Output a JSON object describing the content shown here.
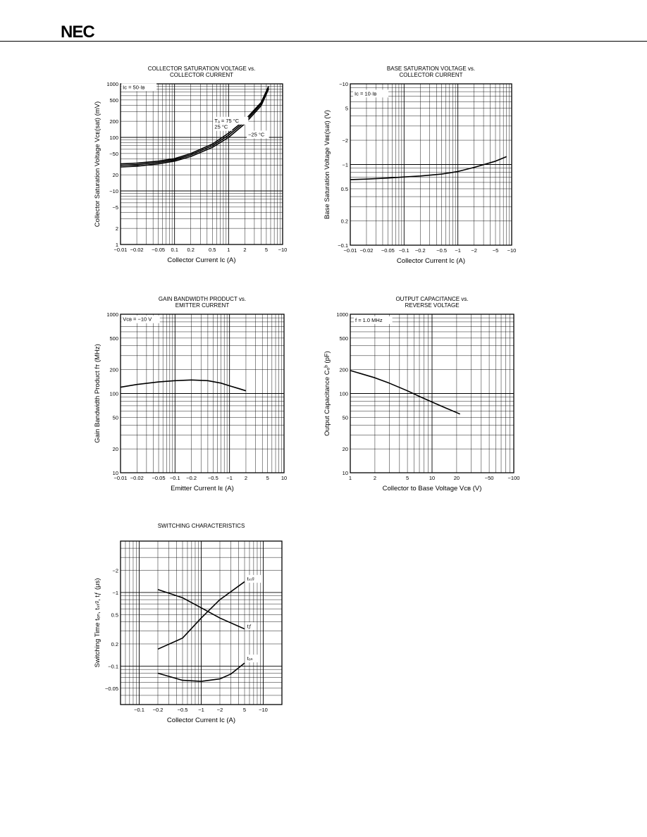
{
  "header": {
    "logo": "NEC"
  },
  "chart_data": [
    {
      "id": "c1",
      "type": "line",
      "title": [
        "COLLECTOR SATURATION VOLTAGE vs.",
        "COLLECTOR CURRENT"
      ],
      "xlabel": "Collector Current  Iᴄ (A)",
      "ylabel": "Collector Saturation Voltage  Vᴄᴇ(sat) (mV)",
      "xscale": "log",
      "yscale": "log",
      "xlim": [
        0.01,
        10
      ],
      "ylim": [
        1,
        1000
      ],
      "xticks": [
        0.01,
        0.02,
        0.05,
        0.1,
        0.2,
        0.5,
        1,
        2,
        5,
        10
      ],
      "xticklabels": [
        "−0.01",
        "−0.02",
        "−0.05",
        "0.1",
        "0.2",
        "0.5",
        "1",
        "2",
        "5",
        "−10"
      ],
      "yticks": [
        1,
        2,
        5,
        10,
        20,
        50,
        100,
        200,
        500,
        1000
      ],
      "yticklabels": [
        "1",
        "2",
        "−5",
        "−10",
        "20",
        "−50",
        "100",
        "200",
        "500",
        "1000"
      ],
      "annotations": [
        {
          "text": "Iᴄ = 50·Iʙ",
          "x": 0.011,
          "y": 800
        },
        {
          "text": "Tₐ = 75 °C",
          "x": 0.55,
          "y": 190
        },
        {
          "text": "25 °C",
          "x": 0.55,
          "y": 145
        },
        {
          "text": "−25 °C",
          "x": 2.3,
          "y": 105
        }
      ],
      "series": [
        {
          "name": "75 °C",
          "x": [
            0.01,
            0.02,
            0.05,
            0.1,
            0.2,
            0.5,
            1,
            2,
            4,
            5.5
          ],
          "y": [
            32,
            33,
            36,
            40,
            50,
            75,
            120,
            210,
            450,
            900
          ]
        },
        {
          "name": "25 °C",
          "x": [
            0.01,
            0.02,
            0.05,
            0.1,
            0.2,
            0.5,
            1,
            2,
            4,
            5.5
          ],
          "y": [
            30,
            31,
            34,
            38,
            47,
            70,
            110,
            195,
            420,
            850
          ]
        },
        {
          "name": "−25 °C",
          "x": [
            0.01,
            0.02,
            0.05,
            0.1,
            0.2,
            0.5,
            1,
            2,
            4,
            5.5
          ],
          "y": [
            28,
            29,
            32,
            36,
            44,
            65,
            100,
            180,
            390,
            800
          ]
        }
      ]
    },
    {
      "id": "c2",
      "type": "line",
      "title": [
        "BASE SATURATION VOLTAGE vs.",
        "COLLECTOR CURRENT"
      ],
      "xlabel": "Collector Current  Iᴄ (A)",
      "ylabel": "Base Saturation Voltage  Vʙᴇ(sat) (V)",
      "xscale": "log",
      "yscale": "log",
      "xlim": [
        0.01,
        10
      ],
      "ylim": [
        0.1,
        10
      ],
      "xticks": [
        0.01,
        0.02,
        0.05,
        0.1,
        0.2,
        0.5,
        1,
        2,
        5,
        10
      ],
      "xticklabels": [
        "−0.01",
        "−0.02",
        "−0.05",
        "−0.1",
        "−0.2",
        "−0.5",
        "−1",
        "−2",
        "−5",
        "−10"
      ],
      "yticks": [
        0.1,
        0.2,
        0.5,
        1,
        2,
        5,
        10
      ],
      "yticklabels": [
        "−0.1",
        "0.2",
        "0.5",
        "−1",
        "−2",
        "5",
        "−10"
      ],
      "annotations": [
        {
          "text": "Iᴄ = 10·Iʙ",
          "x": 0.012,
          "y": 7.2
        }
      ],
      "series": [
        {
          "name": "",
          "x": [
            0.01,
            0.02,
            0.05,
            0.1,
            0.2,
            0.5,
            1,
            2,
            5,
            8
          ],
          "y": [
            0.65,
            0.66,
            0.68,
            0.7,
            0.72,
            0.76,
            0.82,
            0.92,
            1.1,
            1.25
          ]
        }
      ]
    },
    {
      "id": "c3",
      "type": "line",
      "title": [
        "GAIN BANDWIDTH PRODUCT vs.",
        "EMITTER CURRENT"
      ],
      "xlabel": "Emitter Current  Iᴇ (A)",
      "ylabel": "Gain Bandwidth Product  fᴛ (MHz)",
      "xscale": "log",
      "yscale": "log",
      "xlim": [
        0.01,
        10
      ],
      "ylim": [
        10,
        1000
      ],
      "xticks": [
        0.01,
        0.02,
        0.05,
        0.1,
        0.2,
        0.5,
        1,
        2,
        5,
        10
      ],
      "xticklabels": [
        "−0.01",
        "−0.02",
        "−0.05",
        "−0.1",
        "−0.2",
        "−0.5",
        "−1",
        "2",
        "5",
        "10"
      ],
      "yticks": [
        10,
        20,
        50,
        100,
        200,
        500,
        1000
      ],
      "yticklabels": [
        "10",
        "20",
        "50",
        "100",
        "200",
        "500",
        "1000"
      ],
      "annotations": [
        {
          "text": "Vᴄʙ = −10 V",
          "x": 0.011,
          "y": 820
        }
      ],
      "series": [
        {
          "name": "",
          "x": [
            0.01,
            0.02,
            0.05,
            0.1,
            0.2,
            0.4,
            0.7,
            1,
            1.5,
            2
          ],
          "y": [
            120,
            130,
            140,
            145,
            148,
            145,
            135,
            125,
            115,
            108
          ]
        }
      ]
    },
    {
      "id": "c4",
      "type": "line",
      "title": [
        "OUTPUT CAPACITANCE vs.",
        "REVERSE VOLTAGE"
      ],
      "xlabel": "Collector to Base Voltage  Vᴄʙ (V)",
      "ylabel": "Output Capacitance  Cₒᵇ (pF)",
      "xscale": "log",
      "yscale": "log",
      "xlim": [
        1,
        100
      ],
      "ylim": [
        10,
        1000
      ],
      "xticks": [
        1,
        2,
        5,
        10,
        20,
        50,
        100
      ],
      "xticklabels": [
        "1",
        "2",
        "5",
        "10",
        "20",
        "−50",
        "−100"
      ],
      "yticks": [
        10,
        20,
        50,
        100,
        200,
        500,
        1000
      ],
      "yticklabels": [
        "10",
        "20",
        "50",
        "100",
        "200",
        "500",
        "1000"
      ],
      "annotations": [
        {
          "text": "f = 1.0 MHz",
          "x": 1.15,
          "y": 800
        }
      ],
      "series": [
        {
          "name": "",
          "x": [
            1,
            2,
            3,
            5,
            7,
            10,
            15,
            22
          ],
          "y": [
            195,
            158,
            135,
            108,
            92,
            78,
            65,
            55
          ]
        }
      ]
    },
    {
      "id": "c5",
      "type": "line",
      "title": [
        "SWITCHING CHARACTERISTICS"
      ],
      "xlabel": "Collector Current  Iᴄ (A)",
      "ylabel": "Switching Time  tₒₙ, tₛₜᵍ, tƒ (μs)",
      "xscale": "log",
      "yscale": "log",
      "xlim": [
        0.05,
        20
      ],
      "ylim": [
        0.03,
        5
      ],
      "xticks": [
        0.1,
        0.2,
        0.5,
        1,
        2,
        5,
        10
      ],
      "xticklabels": [
        "−0.1",
        "−0.2",
        "−0.5",
        "−1",
        "−2",
        "5",
        "−10"
      ],
      "yticks": [
        0.05,
        0.1,
        0.2,
        0.5,
        1,
        2
      ],
      "yticklabels": [
        "−0.05",
        "−0.1",
        "0.2",
        "0.5",
        "−1",
        "−2"
      ],
      "annotations": [
        {
          "text": "tₛₜᵍ",
          "x": 5.5,
          "y": 1.45
        },
        {
          "text": "tƒ",
          "x": 5.5,
          "y": 0.33
        },
        {
          "text": "tₒₙ",
          "x": 5.5,
          "y": 0.12
        }
      ],
      "series": [
        {
          "name": "tₛₜᵍ",
          "x": [
            0.2,
            0.5,
            1,
            2,
            5
          ],
          "y": [
            0.17,
            0.24,
            0.45,
            0.8,
            1.4
          ]
        },
        {
          "name": "tƒ",
          "x": [
            0.2,
            0.5,
            1,
            2,
            5
          ],
          "y": [
            1.1,
            0.85,
            0.62,
            0.45,
            0.32
          ]
        },
        {
          "name": "tₒₙ",
          "x": [
            0.2,
            0.5,
            1,
            2,
            3,
            5
          ],
          "y": [
            0.08,
            0.064,
            0.062,
            0.067,
            0.078,
            0.11
          ]
        }
      ]
    }
  ]
}
